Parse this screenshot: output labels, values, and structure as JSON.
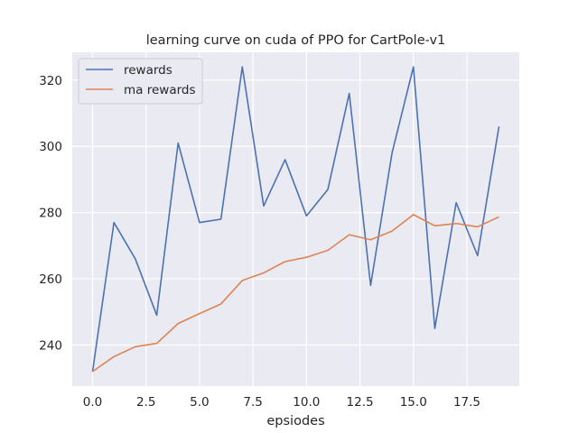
{
  "chart_data": {
    "type": "line",
    "title": "learning curve on cuda of PPO for CartPole-v1",
    "xlabel": "epsiodes",
    "ylabel": "",
    "xlim": [
      -0.95,
      19.95
    ],
    "ylim": [
      227.6,
      328.4
    ],
    "xticks": [
      0.0,
      2.5,
      5.0,
      7.5,
      10.0,
      12.5,
      15.0,
      17.5
    ],
    "xtick_labels": [
      "0.0",
      "2.5",
      "5.0",
      "7.5",
      "10.0",
      "12.5",
      "15.0",
      "17.5"
    ],
    "yticks": [
      240,
      260,
      280,
      300,
      320
    ],
    "ytick_labels": [
      "240",
      "260",
      "280",
      "300",
      "320"
    ],
    "grid": true,
    "legend_position": "top-left",
    "x": [
      0,
      1,
      2,
      3,
      4,
      5,
      6,
      7,
      8,
      9,
      10,
      11,
      12,
      13,
      14,
      15,
      16,
      17,
      18,
      19
    ],
    "series": [
      {
        "name": "rewards",
        "color": "#4c72b0",
        "values": [
          232,
          277,
          266,
          249,
          301,
          277,
          278,
          324,
          282,
          296,
          279,
          287,
          316,
          258,
          298,
          324,
          245,
          283,
          267,
          306
        ]
      },
      {
        "name": "ma rewards",
        "color": "#dd8452",
        "values": [
          232,
          236.5,
          239.5,
          240.5,
          246.5,
          249.5,
          252.4,
          259.5,
          261.8,
          265.2,
          266.5,
          268.6,
          273.3,
          271.8,
          274.4,
          279.4,
          276.0,
          276.7,
          275.7,
          278.7
        ]
      }
    ]
  }
}
